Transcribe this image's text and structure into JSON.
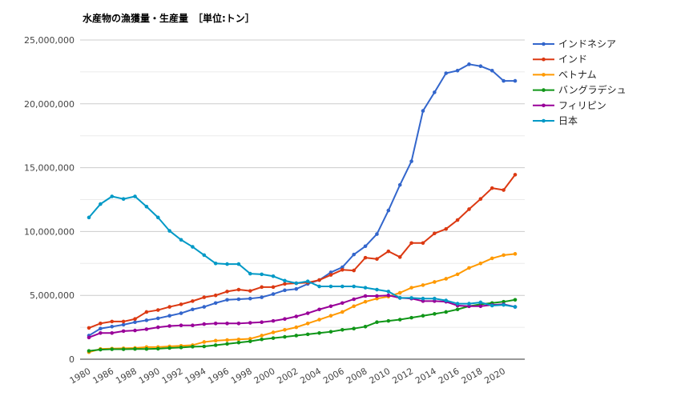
{
  "chart_data": {
    "type": "line",
    "title": "水産物の漁獲量・生産量　［単位:トン］",
    "xlabel": "",
    "ylabel": "",
    "ylim": [
      0,
      25000000
    ],
    "yticks": [
      0,
      5000000,
      10000000,
      15000000,
      20000000,
      25000000
    ],
    "ytick_labels": [
      "0",
      "5,000,000",
      "10,000,000",
      "15,000,000",
      "20,000,000",
      "25,000,000"
    ],
    "grid": true,
    "legend_position": "right",
    "categories": [
      "1980",
      "1985",
      "1986",
      "1987",
      "1988",
      "1989",
      "1990",
      "1991",
      "1992",
      "1993",
      "1994",
      "1995",
      "1996",
      "1997",
      "1998",
      "1999",
      "2000",
      "2001",
      "2002",
      "2003",
      "2004",
      "2005",
      "2006",
      "2007",
      "2008",
      "2009",
      "2010",
      "2011",
      "2012",
      "2013",
      "2014",
      "2015",
      "2016",
      "2017",
      "2018",
      "2019",
      "2020",
      "2021"
    ],
    "xtick_labels": [
      "1980",
      "1986",
      "1988",
      "1990",
      "1992",
      "1994",
      "1996",
      "1998",
      "2000",
      "2002",
      "2004",
      "2006",
      "2008",
      "2010",
      "2012",
      "2014",
      "2016",
      "2018",
      "2020"
    ],
    "series": [
      {
        "name": "インドネシア",
        "color": "#3366cc",
        "values": [
          1850000,
          2400000,
          2550000,
          2700000,
          2900000,
          3050000,
          3200000,
          3400000,
          3600000,
          3900000,
          4100000,
          4400000,
          4650000,
          4700000,
          4750000,
          4850000,
          5100000,
          5400000,
          5500000,
          5900000,
          6200000,
          6800000,
          7200000,
          8200000,
          8850000,
          9800000,
          11650000,
          13650000,
          15500000,
          19450000,
          20900000,
          22400000,
          22600000,
          23100000,
          22950000,
          22600000,
          21800000,
          21800000
        ]
      },
      {
        "name": "インド",
        "color": "#dc3912",
        "values": [
          2450000,
          2800000,
          2950000,
          2950000,
          3150000,
          3700000,
          3850000,
          4100000,
          4300000,
          4550000,
          4850000,
          5000000,
          5300000,
          5450000,
          5350000,
          5650000,
          5650000,
          5900000,
          5950000,
          6000000,
          6200000,
          6600000,
          7000000,
          6950000,
          7950000,
          7850000,
          8450000,
          8000000,
          9100000,
          9100000,
          9850000,
          10200000,
          10900000,
          11750000,
          12550000,
          13400000,
          13250000,
          14450000
        ]
      },
      {
        "name": "ベトナム",
        "color": "#ff9900",
        "values": [
          550000,
          800000,
          830000,
          850000,
          880000,
          950000,
          950000,
          1000000,
          1050000,
          1100000,
          1350000,
          1450000,
          1500000,
          1550000,
          1600000,
          1850000,
          2100000,
          2300000,
          2500000,
          2800000,
          3100000,
          3400000,
          3700000,
          4150000,
          4500000,
          4750000,
          4900000,
          5200000,
          5600000,
          5800000,
          6050000,
          6300000,
          6650000,
          7150000,
          7500000,
          7900000,
          8150000,
          8250000
        ]
      },
      {
        "name": "バングラデシュ",
        "color": "#109618",
        "values": [
          650000,
          750000,
          780000,
          780000,
          800000,
          800000,
          820000,
          880000,
          920000,
          980000,
          1000000,
          1100000,
          1200000,
          1300000,
          1400000,
          1550000,
          1650000,
          1750000,
          1850000,
          1950000,
          2050000,
          2150000,
          2300000,
          2400000,
          2550000,
          2900000,
          3000000,
          3100000,
          3250000,
          3400000,
          3550000,
          3700000,
          3900000,
          4150000,
          4300000,
          4400000,
          4500000,
          4650000
        ]
      },
      {
        "name": "フィリピン",
        "color": "#990099",
        "values": [
          1700000,
          2050000,
          2050000,
          2200000,
          2250000,
          2350000,
          2500000,
          2600000,
          2650000,
          2650000,
          2750000,
          2800000,
          2800000,
          2800000,
          2850000,
          2900000,
          3000000,
          3150000,
          3350000,
          3600000,
          3900000,
          4150000,
          4400000,
          4700000,
          4950000,
          4950000,
          5000000,
          4800000,
          4750000,
          4550000,
          4550000,
          4500000,
          4200000,
          4150000,
          4150000,
          4250000,
          4300000,
          4100000
        ]
      },
      {
        "name": "日本",
        "color": "#0099c6",
        "values": [
          11100000,
          12150000,
          12750000,
          12550000,
          12750000,
          11950000,
          11100000,
          10050000,
          9350000,
          8800000,
          8150000,
          7500000,
          7450000,
          7450000,
          6700000,
          6650000,
          6500000,
          6150000,
          5950000,
          6100000,
          5700000,
          5700000,
          5700000,
          5700000,
          5600000,
          5450000,
          5300000,
          4800000,
          4800000,
          4750000,
          4750000,
          4600000,
          4350000,
          4350000,
          4450000,
          4200000,
          4250000,
          4100000
        ]
      }
    ]
  }
}
